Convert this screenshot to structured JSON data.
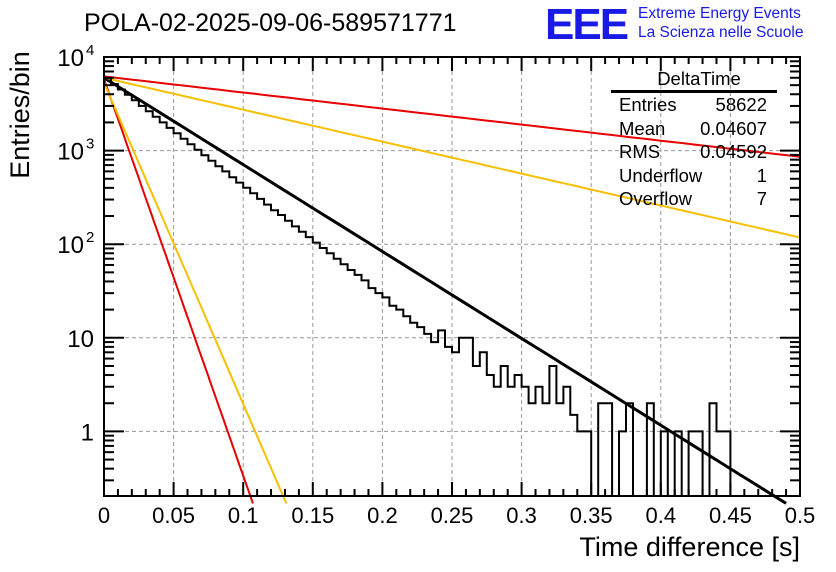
{
  "window": {
    "title": "POLA-02-2025-09-06-589571771"
  },
  "logo": {
    "mark": "EEE",
    "line1": "Extreme Energy Events",
    "line2": "La Scienza nelle Scuole",
    "color": "#1a1ae6"
  },
  "stats_box": {
    "title": "DeltaTime",
    "rows": [
      {
        "label": "Entries",
        "value": "58622"
      },
      {
        "label": "Mean",
        "value": "0.04607"
      },
      {
        "label": "RMS",
        "value": "0.04592"
      },
      {
        "label": "Underflow",
        "value": "1"
      },
      {
        "label": "Overflow",
        "value": "7"
      }
    ]
  },
  "chart_data": {
    "type": "bar",
    "subtype": "histogram-step",
    "title": "POLA-02-2025-09-06-589571771",
    "xlabel": "Time difference [s]",
    "ylabel": "Entries/bin",
    "xlim": [
      0,
      0.5
    ],
    "ylim": [
      0.17,
      10000
    ],
    "yscale": "log",
    "grid": true,
    "x_ticks": [
      "0",
      "0.05",
      "0.1",
      "0.15",
      "0.2",
      "0.25",
      "0.3",
      "0.35",
      "0.4",
      "0.45",
      "0.5"
    ],
    "x_tick_values": [
      0,
      0.05,
      0.1,
      0.15,
      0.2,
      0.25,
      0.3,
      0.35,
      0.4,
      0.45,
      0.5
    ],
    "y_ticks": [
      {
        "value": 10000,
        "label_base": "10",
        "label_exp": "4"
      },
      {
        "value": 1000,
        "label_base": "10",
        "label_exp": "3"
      },
      {
        "value": 100,
        "label_base": "10",
        "label_exp": "2"
      },
      {
        "value": 10,
        "label_base": "10",
        "label_exp": ""
      },
      {
        "value": 1,
        "label_base": "1",
        "label_exp": ""
      }
    ],
    "histogram": {
      "name": "DeltaTime",
      "color": "#000000",
      "bin_width": 0.005,
      "bin_start": 0,
      "values": [
        5900,
        5150,
        4500,
        3950,
        3450,
        3000,
        2630,
        2300,
        2000,
        1750,
        1530,
        1340,
        1170,
        1020,
        890,
        780,
        680,
        600,
        520,
        455,
        400,
        350,
        305,
        265,
        230,
        205,
        178,
        155,
        136,
        119,
        104,
        91,
        80,
        70,
        61,
        53,
        47,
        41,
        34,
        30,
        27,
        22,
        20,
        17,
        14.5,
        13,
        11,
        9,
        12,
        8,
        7,
        10,
        10,
        5,
        7,
        4,
        3,
        5,
        3,
        4,
        3,
        2,
        3,
        2,
        5,
        2,
        3,
        1.5,
        1,
        1,
        0,
        2,
        2,
        0,
        1,
        2,
        0,
        0,
        2,
        0,
        1,
        0,
        1,
        0,
        1,
        1,
        0,
        2,
        1,
        1,
        0,
        0,
        0,
        0,
        0,
        0,
        0,
        0,
        0,
        0
      ]
    },
    "series": [
      {
        "name": "fit",
        "color": "#000000",
        "x": [
          0,
          0.49
        ],
        "y": [
          6000,
          0.17
        ]
      },
      {
        "name": "exp-red-shallow",
        "color": "#e60000",
        "x": [
          0,
          0.5
        ],
        "y": [
          6200,
          860
        ]
      },
      {
        "name": "exp-yellow-shallow",
        "color": "#f5c000",
        "x": [
          0,
          0.5
        ],
        "y": [
          6000,
          118
        ]
      },
      {
        "name": "exp-red-steep",
        "color": "#e60000",
        "x": [
          0,
          0.107
        ],
        "y": [
          5800,
          0.17
        ]
      },
      {
        "name": "exp-yellow-steep",
        "color": "#f5c000",
        "x": [
          0,
          0.131
        ],
        "y": [
          5300,
          0.17
        ]
      }
    ]
  }
}
